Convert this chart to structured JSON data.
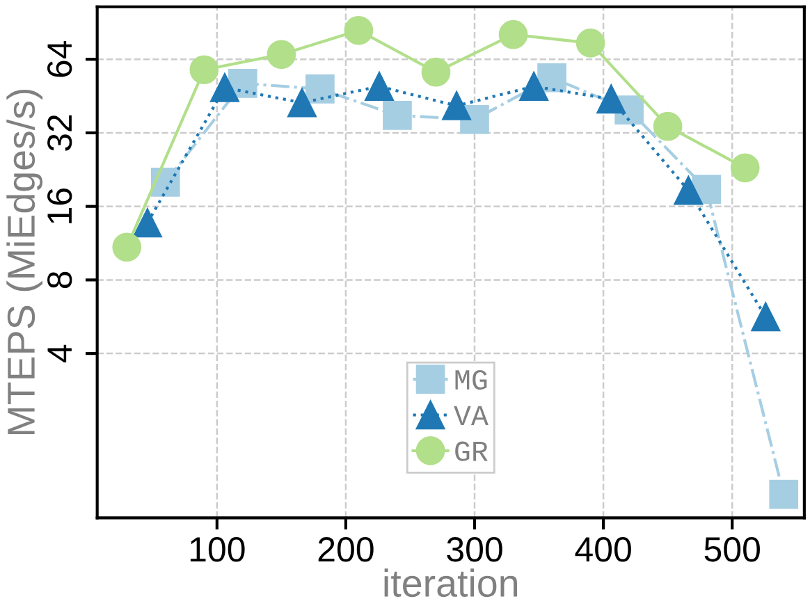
{
  "chart_data": {
    "type": "line",
    "xlabel": "iteration",
    "ylabel": "MTEPS (MiEdges/s)",
    "log": "y",
    "grid": true,
    "legend": "bottom",
    "xlim": [
      7,
      556
    ],
    "xticks": [
      100,
      200,
      300,
      400,
      500
    ],
    "ylim": [
      0.85,
      105
    ],
    "yticks": [
      4,
      8,
      16,
      32,
      64
    ],
    "series": [
      {
        "name": "MG",
        "color": "#a6cee3",
        "marker": "square",
        "line_style": "dashdot",
        "x": [
          60,
          120,
          180,
          240,
          300,
          360,
          420,
          480,
          540
        ],
        "values": [
          20.1,
          51,
          48.4,
          37.7,
          36.3,
          53.8,
          39.7,
          18.8,
          1.06
        ]
      },
      {
        "name": "VA",
        "color": "#1f78b4",
        "marker": "triangle",
        "line_style": "dotted",
        "x": [
          46,
          106,
          166,
          226,
          286,
          346,
          406,
          466,
          526
        ],
        "values": [
          13.7,
          49,
          42.5,
          49.6,
          41.3,
          49.6,
          44,
          18.6,
          5.65
        ]
      },
      {
        "name": "GR",
        "color": "#b2df8a",
        "marker": "circle",
        "line_style": "solid",
        "x": [
          30,
          90,
          150,
          210,
          270,
          330,
          390,
          450,
          510
        ],
        "values": [
          10.9,
          58,
          67,
          84,
          56.7,
          80.8,
          74.6,
          34,
          23
        ]
      }
    ]
  }
}
